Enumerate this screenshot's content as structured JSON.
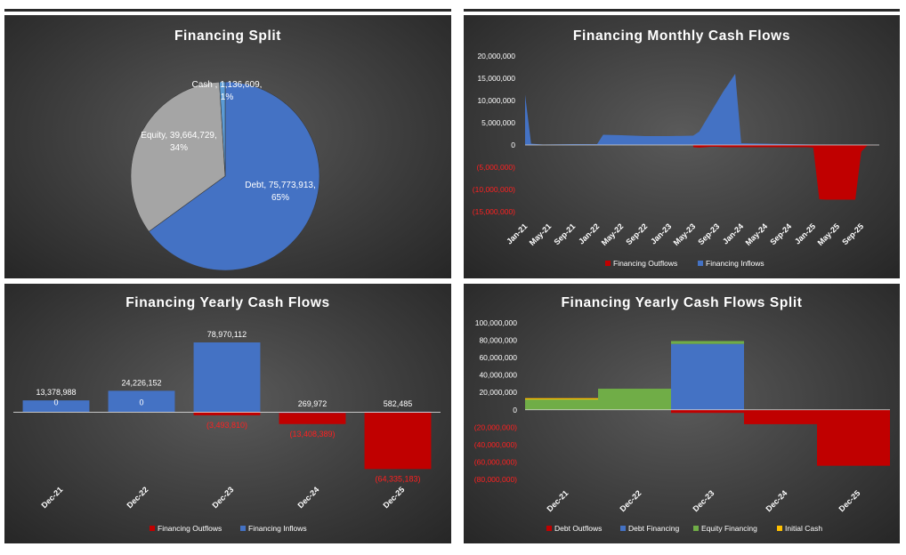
{
  "colors": {
    "outflow": "#c00000",
    "inflow": "#4472c4",
    "debt": "#4472c4",
    "equity_pie": "#a5a5a5",
    "cash_pie": "#5b9bd5",
    "equity_financing": "#70ad47",
    "initial_cash": "#ffc000"
  },
  "chart_data": [
    {
      "id": "split",
      "type": "pie",
      "title": "Financing Split",
      "slices": [
        {
          "name": "Debt",
          "value": 75773913,
          "label_value": "75,773,913",
          "percent": "65%"
        },
        {
          "name": "Equity",
          "value": 39664729,
          "label_value": "39,664,729",
          "percent": "34%"
        },
        {
          "name": "Cash ",
          "value": 1136609,
          "label_value": "1,136,609",
          "percent": "1%"
        }
      ]
    },
    {
      "id": "monthly",
      "type": "area",
      "title": "Financing Monthly Cash Flows",
      "ylim": [
        -15000000,
        20000000
      ],
      "yticks": [
        "20,000,000",
        "15,000,000",
        "10,000,000",
        "5,000,000",
        "0",
        "(5,000,000)",
        "(10,000,000)",
        "(15,000,000)"
      ],
      "ytick_values": [
        20000000,
        15000000,
        10000000,
        5000000,
        0,
        -5000000,
        -10000000,
        -15000000
      ],
      "x_count": 60,
      "xtick_labels": [
        "Jan-21",
        "May-21",
        "Sep-21",
        "Jan-22",
        "May-22",
        "Sep-22",
        "Jan-23",
        "May-23",
        "Sep-23",
        "Jan-24",
        "May-24",
        "Sep-24",
        "Jan-25",
        "May-25",
        "Sep-25"
      ],
      "series": [
        {
          "name": "Financing Outflows",
          "points": [
            [
              0,
              0
            ],
            [
              28,
              0
            ],
            [
              28,
              -500000
            ],
            [
              29,
              -600000
            ],
            [
              30,
              -500000
            ],
            [
              31,
              -400000
            ],
            [
              32,
              -400000
            ],
            [
              33,
              -500000
            ],
            [
              34,
              -500000
            ],
            [
              35,
              -500000
            ],
            [
              36,
              -500000
            ],
            [
              37,
              -500000
            ],
            [
              38,
              -500000
            ],
            [
              39,
              -500000
            ],
            [
              40,
              -500000
            ],
            [
              41,
              -500000
            ],
            [
              42,
              -500000
            ],
            [
              43,
              -500000
            ],
            [
              44,
              -500000
            ],
            [
              45,
              -500000
            ],
            [
              46,
              -500000
            ],
            [
              47,
              -500000
            ],
            [
              48,
              -600000
            ],
            [
              49,
              -12200000
            ],
            [
              50,
              -12300000
            ],
            [
              51,
              -12300000
            ],
            [
              52,
              -12300000
            ],
            [
              53,
              -12300000
            ],
            [
              54,
              -12300000
            ],
            [
              55,
              -12300000
            ],
            [
              56,
              -1500000
            ],
            [
              57,
              -100000
            ],
            [
              59,
              0
            ]
          ]
        },
        {
          "name": "Financing Inflows",
          "points": [
            [
              0,
              11300000
            ],
            [
              1,
              300000
            ],
            [
              3,
              100000
            ],
            [
              8,
              200000
            ],
            [
              12,
              200000
            ],
            [
              13,
              2300000
            ],
            [
              16,
              2200000
            ],
            [
              20,
              2000000
            ],
            [
              24,
              2000000
            ],
            [
              28,
              2100000
            ],
            [
              29,
              3000000
            ],
            [
              31,
              7500000
            ],
            [
              33,
              12000000
            ],
            [
              35,
              16000000
            ],
            [
              36,
              400000
            ],
            [
              40,
              300000
            ],
            [
              44,
              200000
            ],
            [
              48,
              100000
            ],
            [
              59,
              0
            ]
          ]
        }
      ]
    },
    {
      "id": "yearly",
      "type": "bar",
      "title": "Financing Yearly Cash Flows",
      "categories": [
        "Dec-21",
        "Dec-22",
        "Dec-23",
        "Dec-24",
        "Dec-25"
      ],
      "ylim": [
        -70000000,
        85000000
      ],
      "series": [
        {
          "name": "Financing Outflows",
          "values": [
            0,
            0,
            -3493810,
            -13408389,
            -64335183
          ],
          "labels": [
            "0",
            "0",
            "(3,493,810)",
            "(13,408,389)",
            "(64,335,183)"
          ]
        },
        {
          "name": "Financing Inflows",
          "values": [
            13378988,
            24226152,
            78970112,
            269972,
            582485
          ],
          "labels": [
            "13,378,988",
            "24,226,152",
            "78,970,112",
            "269,972",
            "582,485"
          ]
        }
      ]
    },
    {
      "id": "yearly_split",
      "type": "area",
      "title": "Financing Yearly Cash Flows Split",
      "categories": [
        "Dec-21",
        "Dec-22",
        "Dec-23",
        "Dec-24",
        "Dec-25"
      ],
      "ylim": [
        -80000000,
        100000000
      ],
      "yticks": [
        "100,000,000",
        "80,000,000",
        "60,000,000",
        "40,000,000",
        "20,000,000",
        "0",
        "(20,000,000)",
        "(40,000,000)",
        "(60,000,000)",
        "(80,000,000)"
      ],
      "ytick_values": [
        100000000,
        80000000,
        60000000,
        40000000,
        20000000,
        0,
        -20000000,
        -40000000,
        -60000000,
        -80000000
      ],
      "series": [
        {
          "name": "Debt Outflows",
          "values": [
            0,
            0,
            -3500000,
            -16500000,
            -64300000
          ]
        },
        {
          "name": "Debt Financing",
          "values": [
            0,
            0,
            75800000,
            0,
            0
          ]
        },
        {
          "name": "Equity Financing",
          "values": [
            12300000,
            24300000,
            3300000,
            0,
            0
          ]
        },
        {
          "name": "Initial Cash",
          "values": [
            1100000,
            0,
            0,
            0,
            0
          ]
        }
      ]
    }
  ]
}
